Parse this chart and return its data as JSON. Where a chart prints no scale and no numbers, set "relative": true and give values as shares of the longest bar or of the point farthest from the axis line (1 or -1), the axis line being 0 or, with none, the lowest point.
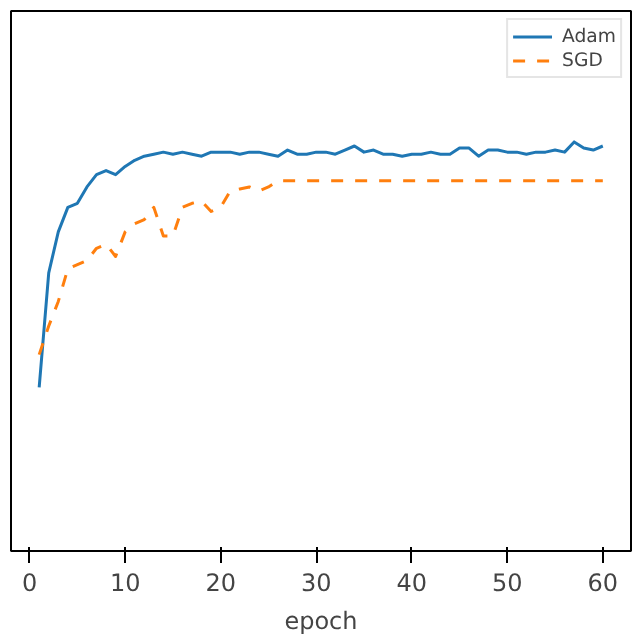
{
  "chart_data": {
    "type": "line",
    "xlabel": "epoch",
    "relative": true,
    "tick_labels": "x",
    "legend": "top right",
    "grid": false,
    "x": [
      1,
      2,
      3,
      4,
      5,
      6,
      7,
      8,
      9,
      10,
      11,
      12,
      13,
      14,
      15,
      16,
      17,
      18,
      19,
      20,
      21,
      22,
      23,
      24,
      25,
      26,
      27,
      28,
      29,
      30,
      31,
      32,
      33,
      34,
      35,
      36,
      37,
      38,
      39,
      40,
      41,
      42,
      43,
      44,
      45,
      46,
      47,
      48,
      49,
      50,
      51,
      52,
      53,
      54,
      55,
      56,
      57,
      58,
      59,
      60
    ],
    "xlim": [
      -1.95,
      62.95
    ],
    "xticks": [
      0,
      10,
      20,
      30,
      40,
      50,
      60
    ],
    "series": [
      {
        "name": "Adam",
        "color": "#1f77b4",
        "line_style": "solid",
        "values": [
          0.4,
          0.68,
          0.78,
          0.84,
          0.85,
          0.89,
          0.92,
          0.93,
          0.92,
          0.94,
          0.955,
          0.965,
          0.97,
          0.975,
          0.97,
          0.975,
          0.97,
          0.965,
          0.975,
          0.975,
          0.975,
          0.97,
          0.975,
          0.975,
          0.97,
          0.965,
          0.98,
          0.97,
          0.97,
          0.975,
          0.975,
          0.97,
          0.98,
          0.99,
          0.975,
          0.98,
          0.97,
          0.97,
          0.965,
          0.97,
          0.97,
          0.975,
          0.97,
          0.97,
          0.985,
          0.985,
          0.965,
          0.98,
          0.98,
          0.975,
          0.975,
          0.97,
          0.975,
          0.975,
          0.98,
          0.975,
          1.0,
          0.985,
          0.98,
          0.99
        ]
      },
      {
        "name": "SGD",
        "color": "#ff7f0e",
        "line_style": "dashed",
        "values": [
          0.48,
          0.55,
          0.61,
          0.69,
          0.7,
          0.71,
          0.74,
          0.75,
          0.72,
          0.78,
          0.8,
          0.81,
          0.84,
          0.77,
          0.77,
          0.84,
          0.85,
          0.855,
          0.83,
          0.84,
          0.88,
          0.885,
          0.89,
          0.88,
          0.89,
          0.905,
          0.905,
          0.905,
          0.905,
          0.905,
          0.905,
          0.905,
          0.905,
          0.905,
          0.905,
          0.905,
          0.905,
          0.905,
          0.905,
          0.905,
          0.905,
          0.905,
          0.905,
          0.905,
          0.905,
          0.905,
          0.905,
          0.905,
          0.905,
          0.905,
          0.905,
          0.905,
          0.905,
          0.905,
          0.905,
          0.905,
          0.905,
          0.905,
          0.905,
          0.905
        ]
      }
    ]
  }
}
